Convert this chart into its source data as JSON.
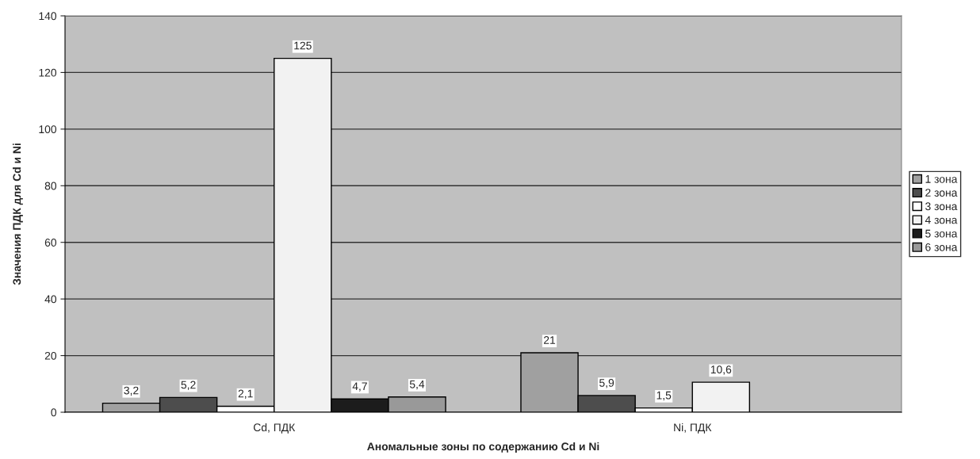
{
  "chart_data": {
    "type": "bar",
    "xlabel": "Аномальные зоны по содержанию Cd и Ni",
    "ylabel": "Значения ПДК для Cd и Ni",
    "categories": [
      "Cd, ПДК",
      "Ni, ПДК"
    ],
    "series": [
      {
        "name": "1 зона",
        "color": "#a0a0a0",
        "values": [
          3.2,
          21
        ],
        "value_labels": [
          "3,2",
          "21"
        ]
      },
      {
        "name": "2 зона",
        "color": "#4d4d4d",
        "values": [
          5.2,
          5.9
        ],
        "value_labels": [
          "5,2",
          "5,9"
        ]
      },
      {
        "name": "3 зона",
        "color": "#ffffff",
        "values": [
          2.1,
          1.5
        ],
        "value_labels": [
          "2,1",
          "1,5"
        ]
      },
      {
        "name": "4 зона",
        "color": "#f2f2f2",
        "values": [
          125,
          10.6
        ],
        "value_labels": [
          "125",
          "10,6"
        ]
      },
      {
        "name": "5 зона",
        "color": "#1c1c1c",
        "values": [
          4.7,
          null
        ],
        "value_labels": [
          "4,7",
          null
        ]
      },
      {
        "name": "6 зона",
        "color": "#999999",
        "values": [
          5.4,
          null
        ],
        "value_labels": [
          "5,4",
          null
        ]
      }
    ],
    "ylim": [
      0,
      140
    ],
    "yticks": [
      0,
      20,
      40,
      60,
      80,
      100,
      120,
      140
    ],
    "grid": "y",
    "legend": "right"
  }
}
